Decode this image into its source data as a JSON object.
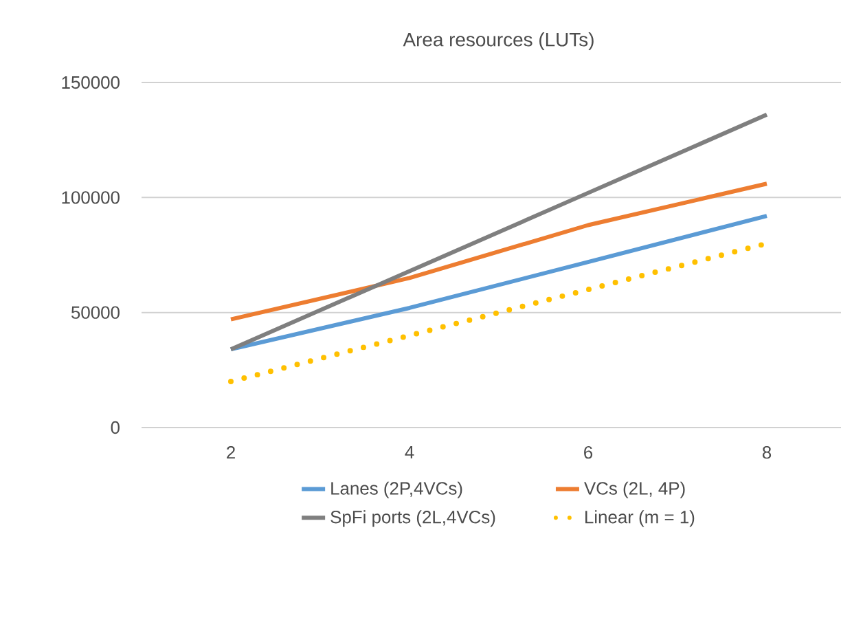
{
  "chart_data": {
    "type": "line",
    "title": "Area resources (LUTs)",
    "categories": [
      "2",
      "4",
      "6",
      "8"
    ],
    "series": [
      {
        "name": "Lanes (2P,4VCs)",
        "color": "#5b9bd5",
        "values": [
          34000,
          52000,
          72000,
          92000
        ]
      },
      {
        "name": "VCs (2L, 4P)",
        "color": "#ed7d31",
        "values": [
          47000,
          65000,
          88000,
          106000
        ]
      },
      {
        "name": "SpFi ports (2L,4VCs)",
        "color": "#7f7f7f",
        "values": [
          34000,
          68000,
          102000,
          136000
        ]
      },
      {
        "name": "Linear (m = 1)",
        "color": "#ffc000",
        "line_style": "dotted",
        "values": [
          20000,
          40000,
          60000,
          80000
        ]
      }
    ],
    "ylim": [
      0,
      150000
    ],
    "yticks": [
      0,
      50000,
      100000,
      150000
    ],
    "grid": "y",
    "legend": "bottom",
    "marker": "none"
  }
}
